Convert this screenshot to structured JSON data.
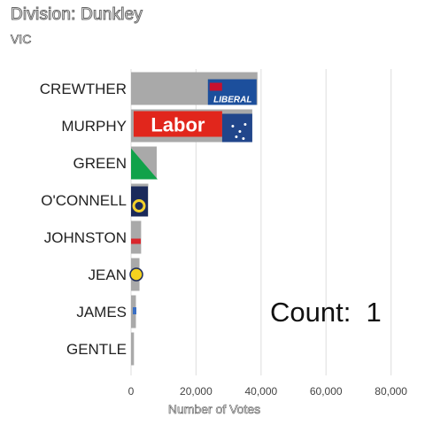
{
  "chart_data": {
    "type": "bar",
    "orientation": "horizontal",
    "title": "Division: Dunkley",
    "subtitle": "VIC",
    "xlabel": "Number of Votes",
    "ylabel": "",
    "categories": [
      "CREWTHER",
      "MURPHY",
      "GREEN",
      "O'CONNELL",
      "JOHNSTON",
      "JEAN",
      "JAMES",
      "GENTLE"
    ],
    "values": [
      38900,
      37300,
      7900,
      5300,
      3100,
      2600,
      1500,
      900
    ],
    "xlim": [
      0,
      85000
    ],
    "xticks": [
      0,
      20000,
      40000,
      60000,
      80000
    ],
    "xtick_labels": [
      "0",
      "20,000",
      "40,000",
      "60,000",
      "80,000"
    ],
    "grid": "vertical major",
    "legend": "none",
    "annotation": "Count:  1",
    "bar_color": "#a9a9a9",
    "logos": [
      "liberal-logo",
      "labor-logo",
      "greens-logo",
      "uap-logo",
      "party-logo",
      "party-logo",
      "party-logo",
      "none"
    ]
  }
}
